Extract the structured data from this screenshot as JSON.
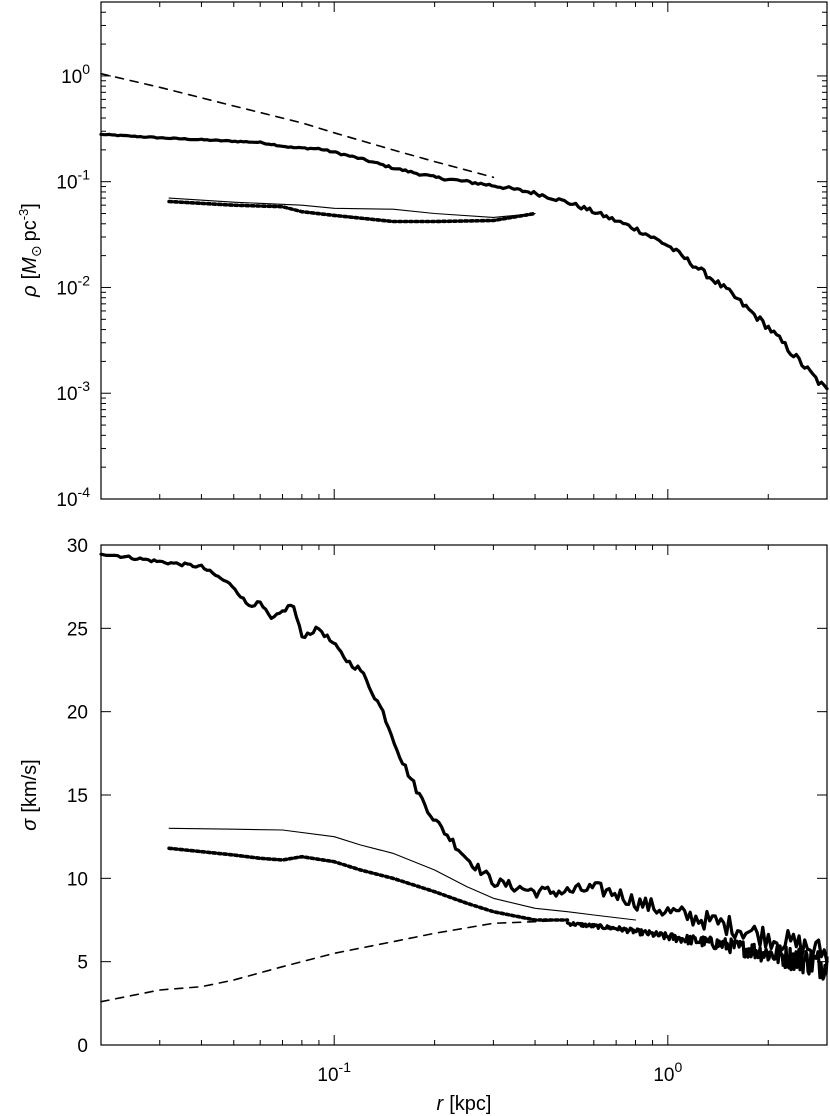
{
  "chart_data": [
    {
      "type": "line",
      "panel": "top",
      "ylabel": "ρ [M⊙ pc⁻³]",
      "ylabel_parts": {
        "sym": "ρ",
        "open": "[",
        "mass": "M",
        "sun": "⊙",
        "unit": "pc",
        "exp": "-3",
        "close": "]"
      },
      "xlabel": "",
      "xscale": "log",
      "yscale": "log",
      "xlim": [
        0.02,
        3.0
      ],
      "ylim": [
        0.0001,
        5
      ],
      "yticks": [
        {
          "value": 1,
          "base": "10",
          "exp": "0"
        },
        {
          "value": 0.1,
          "base": "10",
          "exp": "-1"
        },
        {
          "value": 0.01,
          "base": "10",
          "exp": "-2"
        },
        {
          "value": 0.001,
          "base": "10",
          "exp": "-3"
        },
        {
          "value": 0.0001,
          "base": "10",
          "exp": "-4"
        }
      ],
      "series": [
        {
          "style": "dashed",
          "x": [
            0.02,
            0.03,
            0.05,
            0.08,
            0.1,
            0.15,
            0.2,
            0.3
          ],
          "y": [
            1.05,
            0.78,
            0.52,
            0.36,
            0.29,
            0.2,
            0.155,
            0.11
          ]
        },
        {
          "style": "thick-solid",
          "x": [
            0.02,
            0.03,
            0.045,
            0.06,
            0.075,
            0.09,
            0.1,
            0.12,
            0.15,
            0.2,
            0.25,
            0.3,
            0.4,
            0.5,
            0.6,
            0.8,
            1.0,
            1.5,
            2.0,
            3.0
          ],
          "y": [
            0.28,
            0.26,
            0.245,
            0.235,
            0.21,
            0.205,
            0.19,
            0.165,
            0.135,
            0.11,
            0.1,
            0.092,
            0.078,
            0.064,
            0.052,
            0.036,
            0.025,
            0.0095,
            0.0042,
            0.00105
          ],
          "noise": 0.06
        },
        {
          "style": "thin-solid",
          "x": [
            0.032,
            0.05,
            0.08,
            0.1,
            0.15,
            0.2,
            0.3,
            0.4
          ],
          "y": [
            0.07,
            0.064,
            0.06,
            0.056,
            0.055,
            0.05,
            0.046,
            0.05
          ]
        },
        {
          "style": "dotted",
          "x": [
            0.032,
            0.05,
            0.07,
            0.08,
            0.1,
            0.15,
            0.2,
            0.3,
            0.4
          ],
          "y": [
            0.065,
            0.06,
            0.058,
            0.052,
            0.048,
            0.042,
            0.042,
            0.043,
            0.05
          ]
        }
      ]
    },
    {
      "type": "line",
      "panel": "bottom",
      "ylabel": "σ [km/s]",
      "ylabel_parts": {
        "sym": "σ",
        "unit": "[km/s]"
      },
      "xlabel": "r [kpc]",
      "xlabel_parts": {
        "sym": "r",
        "unit": "[kpc]"
      },
      "xscale": "log",
      "yscale": "linear",
      "xlim": [
        0.02,
        3.0
      ],
      "ylim": [
        0,
        30
      ],
      "xticks": [
        {
          "value": 0.1,
          "base": "10",
          "exp": "-1"
        },
        {
          "value": 1,
          "base": "10",
          "exp": "0"
        }
      ],
      "yticks": [
        "0",
        "5",
        "10",
        "15",
        "20",
        "25",
        "30"
      ],
      "series": [
        {
          "style": "thick-solid",
          "x": [
            0.02,
            0.03,
            0.04,
            0.05,
            0.055,
            0.06,
            0.065,
            0.07,
            0.075,
            0.08,
            0.09,
            0.1,
            0.11,
            0.12,
            0.14,
            0.16,
            0.18,
            0.2,
            0.25,
            0.3,
            0.4,
            0.5,
            0.6,
            0.7,
            0.8,
            1.0,
            1.5,
            2.0,
            3.0
          ],
          "y": [
            29.5,
            29.0,
            28.7,
            27.5,
            26.4,
            26.5,
            25.5,
            26.0,
            26.5,
            24.5,
            25.0,
            24.0,
            23.0,
            22.5,
            20.0,
            17.0,
            15.0,
            13.5,
            11.2,
            9.8,
            9.2,
            9.2,
            9.4,
            9.1,
            8.6,
            8.0,
            7.2,
            6.5,
            5.5
          ],
          "noise": 0.6
        },
        {
          "style": "thin-solid",
          "x": [
            0.032,
            0.05,
            0.07,
            0.1,
            0.12,
            0.15,
            0.2,
            0.25,
            0.3,
            0.4,
            0.5,
            0.6,
            0.8
          ],
          "y": [
            13.0,
            12.95,
            12.9,
            12.5,
            12.0,
            11.5,
            10.5,
            9.5,
            8.8,
            8.2,
            8.0,
            7.8,
            7.5
          ]
        },
        {
          "style": "dotted",
          "x": [
            0.032,
            0.05,
            0.06,
            0.07,
            0.08,
            0.1,
            0.12,
            0.15,
            0.2,
            0.25,
            0.3,
            0.4,
            0.5
          ],
          "y": [
            11.8,
            11.4,
            11.2,
            11.1,
            11.3,
            11.0,
            10.5,
            10.0,
            9.2,
            8.5,
            8.0,
            7.5,
            7.5
          ]
        },
        {
          "style": "thick-solid",
          "x": [
            0.5,
            0.7,
            1.0,
            1.5,
            2.0,
            3.0
          ],
          "y": [
            7.3,
            7.0,
            6.5,
            6.0,
            5.5,
            4.8
          ],
          "noise": 0.7
        },
        {
          "style": "dashed",
          "x": [
            0.02,
            0.03,
            0.04,
            0.05,
            0.07,
            0.1,
            0.15,
            0.2,
            0.3,
            0.4,
            0.5
          ],
          "y": [
            2.6,
            3.3,
            3.5,
            3.9,
            4.7,
            5.5,
            6.2,
            6.7,
            7.3,
            7.4,
            7.5
          ]
        }
      ]
    }
  ]
}
